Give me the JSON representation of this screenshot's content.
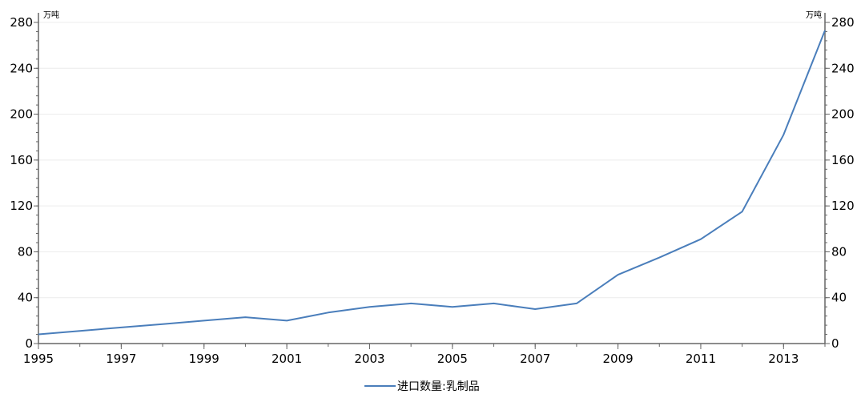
{
  "chart_data": {
    "type": "line",
    "x": [
      1995,
      1996,
      1997,
      1998,
      1999,
      2000,
      2001,
      2002,
      2003,
      2004,
      2005,
      2006,
      2007,
      2008,
      2009,
      2010,
      2011,
      2012,
      2013,
      2014
    ],
    "series": [
      {
        "name": "进口数量:乳制品",
        "color": "#4a7ebb",
        "values": [
          8,
          11,
          14,
          17,
          20,
          23,
          20,
          27,
          32,
          35,
          32,
          35,
          30,
          35,
          60,
          75,
          91,
          115,
          182,
          273
        ]
      }
    ],
    "x_tick_labels": [
      "1995",
      "1997",
      "1999",
      "2001",
      "2003",
      "2005",
      "2007",
      "2009",
      "2011",
      "2013"
    ],
    "y_tick_labels": [
      "0",
      "40",
      "80",
      "120",
      "160",
      "200",
      "240",
      "280"
    ],
    "y_unit_left": "万吨",
    "y_unit_right": "万吨",
    "xlim": [
      1995,
      2014
    ],
    "ylim": [
      0,
      280
    ],
    "grid": true,
    "legend_position": "bottom-center"
  }
}
